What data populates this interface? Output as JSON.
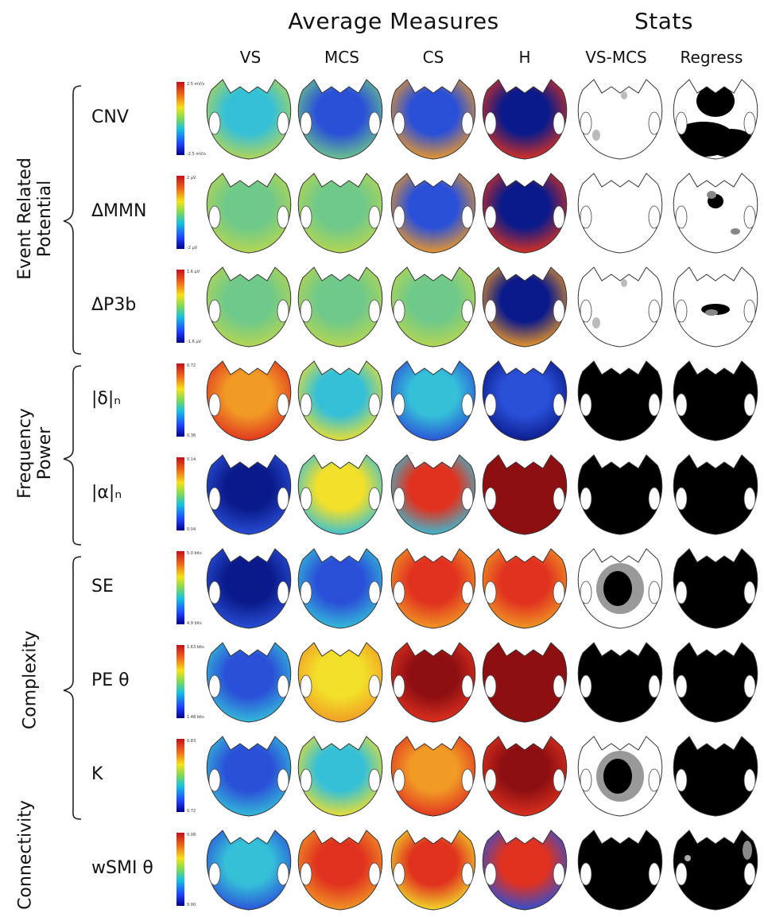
{
  "headers": {
    "average": "Average Measures",
    "stats": "Stats"
  },
  "columns": [
    "VS",
    "MCS",
    "CS",
    "H",
    "VS-MCS",
    "Regress"
  ],
  "groups": {
    "erp_line1": "Event Related",
    "erp_line2": "Potential",
    "freq_line1": "Frequency",
    "freq_line2": "Power",
    "complexity": "Complexity",
    "connectivity": "Connectivity"
  },
  "rows": [
    {
      "label": "CNV",
      "scale_top": "2.5 mV/s",
      "scale_bottom": "-2.5 mV/s",
      "maps": [
        [
          "yellowgreen",
          "cyan"
        ],
        [
          "green",
          "blue"
        ],
        [
          "orange",
          "blue"
        ],
        [
          "red",
          "navy"
        ]
      ],
      "stats": [
        "sparse",
        "black-top"
      ]
    },
    {
      "label": "ΔMMN",
      "scale_top": "2 µV",
      "scale_bottom": "-2 µV",
      "maps": [
        [
          "yellowgreen",
          "green"
        ],
        [
          "yellowgreen",
          "green"
        ],
        [
          "orange",
          "blue"
        ],
        [
          "red",
          "navy"
        ]
      ],
      "stats": [
        "empty",
        "spots"
      ]
    },
    {
      "label": "ΔP3b",
      "scale_top": "1.6 µV",
      "scale_bottom": "-1.6 µV",
      "maps": [
        [
          "yellowgreen",
          "green"
        ],
        [
          "yellowgreen",
          "green"
        ],
        [
          "yellowgreen",
          "green"
        ],
        [
          "orange",
          "navy"
        ]
      ],
      "stats": [
        "sparse",
        "center-spot"
      ]
    },
    {
      "label": "|δ|ₙ",
      "scale_top": "0.72",
      "scale_bottom": "0.36",
      "maps": [
        [
          "red",
          "orange"
        ],
        [
          "yellow",
          "cyan"
        ],
        [
          "blue",
          "cyan"
        ],
        [
          "navy",
          "blue"
        ]
      ],
      "stats": [
        "black",
        "black"
      ]
    },
    {
      "label": "|α|ₙ",
      "scale_top": "0.14",
      "scale_bottom": "0.04",
      "maps": [
        [
          "blue",
          "navy"
        ],
        [
          "cyan",
          "yellow"
        ],
        [
          "cyan",
          "red"
        ],
        [
          "darkred",
          "darkred"
        ]
      ],
      "stats": [
        "black",
        "black"
      ]
    },
    {
      "label": "SE",
      "scale_top": "5.0 bits",
      "scale_bottom": "4.9 bits",
      "maps": [
        [
          "blue",
          "navy"
        ],
        [
          "cyan",
          "blue"
        ],
        [
          "orange",
          "red"
        ],
        [
          "orange",
          "red"
        ]
      ],
      "stats": [
        "gray-black",
        "black"
      ]
    },
    {
      "label": "PE θ",
      "scale_top": "1.63 bits",
      "scale_bottom": "1.48 bits",
      "maps": [
        [
          "cyan",
          "blue"
        ],
        [
          "orange",
          "yellow"
        ],
        [
          "red",
          "darkred"
        ],
        [
          "darkred",
          "darkred"
        ]
      ],
      "stats": [
        "black",
        "black"
      ]
    },
    {
      "label": "K",
      "scale_top": "0.83",
      "scale_bottom": "0.72",
      "maps": [
        [
          "cyan",
          "blue"
        ],
        [
          "yellow",
          "cyan"
        ],
        [
          "red",
          "orange"
        ],
        [
          "red",
          "darkred"
        ]
      ],
      "stats": [
        "gray-black",
        "black"
      ]
    },
    {
      "label": "wSMI θ",
      "scale_top": "0.08",
      "scale_bottom": "0.00",
      "maps": [
        [
          "blue",
          "cyan"
        ],
        [
          "orange",
          "red"
        ],
        [
          "yellow",
          "red"
        ],
        [
          "blue",
          "red"
        ]
      ],
      "stats": [
        "black",
        "black-gray"
      ]
    }
  ]
}
